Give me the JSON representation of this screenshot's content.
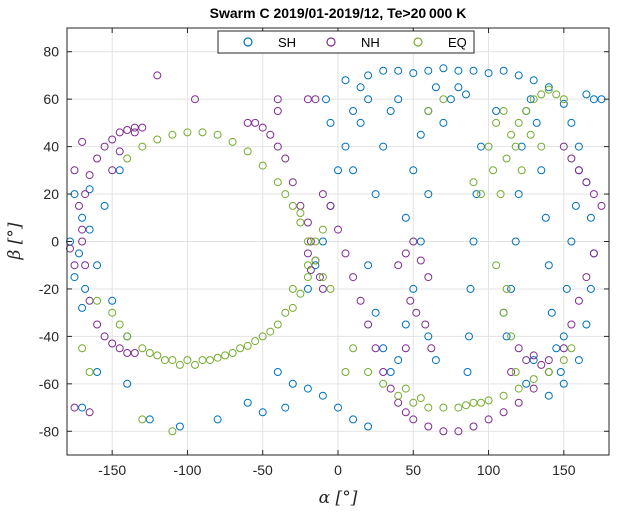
{
  "chart_data": {
    "type": "scatter",
    "title": "Swarm C 2019/01-2019/12, Te>20 000 K",
    "xlabel": "α [°]",
    "ylabel": "β [°]",
    "xlim": [
      -180,
      180
    ],
    "ylim": [
      -90,
      90
    ],
    "xticks": [
      -150,
      -100,
      -50,
      0,
      50,
      100,
      150
    ],
    "yticks": [
      -80,
      -60,
      -40,
      -20,
      0,
      20,
      40,
      60,
      80
    ],
    "xtick_labels": [
      "-150",
      "-100",
      "-50",
      "0",
      "50",
      "100",
      "150"
    ],
    "ytick_labels": [
      "-80",
      "-60",
      "-40",
      "-20",
      "0",
      "20",
      "40",
      "60",
      "80"
    ],
    "grid": true,
    "legend_position": "top",
    "marker": "open-circle",
    "series": [
      {
        "name": "SH",
        "color": "#0072BD",
        "description_shapes": {
          "left_loop_center": [
            -100,
            0
          ],
          "right_loop_center": [
            90,
            0
          ],
          "right_loop_semi_axes": [
            70,
            70
          ]
        },
        "points": [
          [
            -175,
            20
          ],
          [
            -172,
            -5
          ],
          [
            -170,
            10
          ],
          [
            -168,
            -20
          ],
          [
            -165,
            5
          ],
          [
            -160,
            -10
          ],
          [
            -155,
            15
          ],
          [
            -150,
            -25
          ],
          [
            -145,
            30
          ],
          [
            -140,
            -40
          ],
          [
            -175,
            -15
          ],
          [
            -178,
            0
          ],
          [
            -170,
            -28
          ],
          [
            -165,
            22
          ],
          [
            -20,
            -20
          ],
          [
            -15,
            -10
          ],
          [
            -10,
            0
          ],
          [
            -5,
            15
          ],
          [
            0,
            30
          ],
          [
            5,
            40
          ],
          [
            10,
            55
          ],
          [
            15,
            65
          ],
          [
            20,
            70
          ],
          [
            30,
            72
          ],
          [
            40,
            72
          ],
          [
            50,
            71
          ],
          [
            60,
            72
          ],
          [
            70,
            73
          ],
          [
            80,
            72
          ],
          [
            90,
            72
          ],
          [
            100,
            71
          ],
          [
            110,
            72
          ],
          [
            120,
            70
          ],
          [
            130,
            68
          ],
          [
            140,
            65
          ],
          [
            150,
            58
          ],
          [
            155,
            50
          ],
          [
            160,
            40
          ],
          [
            165,
            25
          ],
          [
            168,
            10
          ],
          [
            170,
            -5
          ],
          [
            168,
            -20
          ],
          [
            165,
            -35
          ],
          [
            160,
            -50
          ],
          [
            150,
            -60
          ],
          [
            140,
            -65
          ],
          [
            10,
            30
          ],
          [
            15,
            50
          ],
          [
            20,
            60
          ],
          [
            25,
            20
          ],
          [
            30,
            40
          ],
          [
            35,
            55
          ],
          [
            40,
            60
          ],
          [
            45,
            10
          ],
          [
            50,
            30
          ],
          [
            55,
            45
          ],
          [
            60,
            55
          ],
          [
            65,
            65
          ],
          [
            70,
            50
          ],
          [
            75,
            60
          ],
          [
            80,
            65
          ],
          [
            85,
            62
          ],
          [
            60,
            20
          ],
          [
            55,
            0
          ],
          [
            50,
            -20
          ],
          [
            45,
            -35
          ],
          [
            40,
            -50
          ],
          [
            35,
            -55
          ],
          [
            30,
            -45
          ],
          [
            25,
            -30
          ],
          [
            20,
            -10
          ],
          [
            60,
            -40
          ],
          [
            65,
            -50
          ],
          [
            110,
            -30
          ],
          [
            112,
            -40
          ],
          [
            115,
            -20
          ],
          [
            118,
            0
          ],
          [
            120,
            20
          ],
          [
            122,
            40
          ],
          [
            125,
            55
          ],
          [
            128,
            60
          ],
          [
            132,
            50
          ],
          [
            135,
            30
          ],
          [
            138,
            10
          ],
          [
            140,
            -10
          ],
          [
            142,
            -30
          ],
          [
            145,
            -45
          ],
          [
            148,
            -55
          ],
          [
            150,
            -40
          ],
          [
            152,
            -20
          ],
          [
            155,
            0
          ],
          [
            158,
            15
          ],
          [
            160,
            30
          ],
          [
            130,
            -50
          ],
          [
            125,
            -60
          ],
          [
            -40,
            -55
          ],
          [
            -30,
            -60
          ],
          [
            -20,
            -62
          ],
          [
            -10,
            -65
          ],
          [
            -50,
            -72
          ],
          [
            -60,
            -68
          ],
          [
            -80,
            -75
          ],
          [
            -105,
            -78
          ],
          [
            -125,
            -75
          ],
          [
            -140,
            -60
          ],
          [
            -160,
            -55
          ],
          [
            -170,
            -70
          ],
          [
            0,
            -70
          ],
          [
            10,
            -75
          ],
          [
            20,
            -78
          ],
          [
            -35,
            -70
          ],
          [
            170,
            60
          ],
          [
            175,
            60
          ],
          [
            165,
            62
          ],
          [
            -5,
            50
          ],
          [
            -8,
            60
          ],
          [
            5,
            68
          ],
          [
            105,
            55
          ],
          [
            95,
            40
          ],
          [
            92,
            20
          ],
          [
            90,
            0
          ],
          [
            88,
            -20
          ],
          [
            87,
            -40
          ],
          [
            86,
            -55
          ]
        ]
      },
      {
        "name": "NH",
        "color": "#7E2F8E",
        "points": [
          [
            -175,
            30
          ],
          [
            -172,
            15
          ],
          [
            -170,
            0
          ],
          [
            -168,
            -10
          ],
          [
            -165,
            -25
          ],
          [
            -160,
            -35
          ],
          [
            -155,
            -40
          ],
          [
            -150,
            -43
          ],
          [
            -145,
            -45
          ],
          [
            -140,
            -47
          ],
          [
            -135,
            -47
          ],
          [
            -175,
            -10
          ],
          [
            -178,
            -3
          ],
          [
            -170,
            5
          ],
          [
            -168,
            20
          ],
          [
            -165,
            28
          ],
          [
            -160,
            35
          ],
          [
            -155,
            40
          ],
          [
            -150,
            43
          ],
          [
            -145,
            46
          ],
          [
            -140,
            47
          ],
          [
            -135,
            48
          ],
          [
            -130,
            48
          ],
          [
            -40,
            40
          ],
          [
            -35,
            35
          ],
          [
            -30,
            25
          ],
          [
            -25,
            15
          ],
          [
            -20,
            8
          ],
          [
            -18,
            0
          ],
          [
            -15,
            -8
          ],
          [
            -12,
            -15
          ],
          [
            -10,
            -20
          ],
          [
            -45,
            45
          ],
          [
            -50,
            48
          ],
          [
            -55,
            50
          ],
          [
            -60,
            50
          ],
          [
            -20,
            -5
          ],
          [
            -18,
            -12
          ],
          [
            -10,
            20
          ],
          [
            -5,
            15
          ],
          [
            0,
            5
          ],
          [
            5,
            -5
          ],
          [
            10,
            -15
          ],
          [
            15,
            -25
          ],
          [
            20,
            -35
          ],
          [
            25,
            -45
          ],
          [
            30,
            -55
          ],
          [
            35,
            -62
          ],
          [
            40,
            -68
          ],
          [
            45,
            -72
          ],
          [
            50,
            -75
          ],
          [
            60,
            -78
          ],
          [
            70,
            -80
          ],
          [
            80,
            -80
          ],
          [
            90,
            -78
          ],
          [
            100,
            -75
          ],
          [
            110,
            -72
          ],
          [
            120,
            -68
          ],
          [
            130,
            -62
          ],
          [
            140,
            -55
          ],
          [
            150,
            -45
          ],
          [
            155,
            -35
          ],
          [
            160,
            -25
          ],
          [
            165,
            -15
          ],
          [
            170,
            -5
          ],
          [
            150,
            40
          ],
          [
            155,
            35
          ],
          [
            160,
            30
          ],
          [
            165,
            25
          ],
          [
            170,
            20
          ],
          [
            175,
            15
          ],
          [
            -150,
            30
          ],
          [
            -145,
            38
          ],
          [
            -135,
            46
          ],
          [
            40,
            -10
          ],
          [
            45,
            -5
          ],
          [
            50,
            0
          ],
          [
            55,
            -8
          ],
          [
            60,
            -15
          ],
          [
            48,
            -25
          ],
          [
            52,
            -30
          ],
          [
            58,
            -35
          ],
          [
            62,
            -45
          ],
          [
            45,
            -45
          ],
          [
            -175,
            -70
          ],
          [
            -165,
            -72
          ],
          [
            -170,
            42
          ],
          [
            -120,
            70
          ],
          [
            -95,
            60
          ],
          [
            -40,
            60
          ],
          [
            -40,
            55
          ],
          [
            -20,
            60
          ],
          [
            -15,
            60
          ],
          [
            125,
            -50
          ],
          [
            120,
            -45
          ],
          [
            115,
            -55
          ],
          [
            130,
            -48
          ],
          [
            135,
            -52
          ],
          [
            140,
            -50
          ]
        ]
      },
      {
        "name": "EQ",
        "color": "#77AC30",
        "points": [
          [
            -140,
            35
          ],
          [
            -130,
            40
          ],
          [
            -120,
            43
          ],
          [
            -110,
            45
          ],
          [
            -100,
            46
          ],
          [
            -90,
            46
          ],
          [
            -80,
            45
          ],
          [
            -70,
            42
          ],
          [
            -60,
            38
          ],
          [
            -50,
            32
          ],
          [
            -40,
            25
          ],
          [
            -30,
            15
          ],
          [
            -25,
            8
          ],
          [
            -20,
            0
          ],
          [
            -15,
            -8
          ],
          [
            -10,
            -15
          ],
          [
            -5,
            -20
          ],
          [
            -145,
            -35
          ],
          [
            -140,
            -40
          ],
          [
            -130,
            -45
          ],
          [
            -120,
            -48
          ],
          [
            -110,
            -50
          ],
          [
            -100,
            -50
          ],
          [
            -90,
            -50
          ],
          [
            -80,
            -49
          ],
          [
            -70,
            -47
          ],
          [
            -60,
            -44
          ],
          [
            -50,
            -40
          ],
          [
            -40,
            -35
          ],
          [
            -30,
            -28
          ],
          [
            -25,
            -22
          ],
          [
            -20,
            -15
          ],
          [
            -35,
            -30
          ],
          [
            -45,
            -38
          ],
          [
            -55,
            -42
          ],
          [
            -65,
            -45
          ],
          [
            -75,
            -48
          ],
          [
            -85,
            -50
          ],
          [
            -95,
            -52
          ],
          [
            -105,
            -52
          ],
          [
            -115,
            -50
          ],
          [
            -125,
            -47
          ],
          [
            -35,
            20
          ],
          [
            -25,
            12
          ],
          [
            -30,
            -20
          ],
          [
            -20,
            -10
          ],
          [
            -15,
            0
          ],
          [
            -10,
            5
          ],
          [
            20,
            -55
          ],
          [
            30,
            -60
          ],
          [
            40,
            -65
          ],
          [
            50,
            -68
          ],
          [
            60,
            -70
          ],
          [
            70,
            -70
          ],
          [
            80,
            -70
          ],
          [
            90,
            -68
          ],
          [
            100,
            -67
          ],
          [
            110,
            -65
          ],
          [
            120,
            -62
          ],
          [
            130,
            -58
          ],
          [
            140,
            -55
          ],
          [
            150,
            -50
          ],
          [
            155,
            -45
          ],
          [
            45,
            -62
          ],
          [
            55,
            -66
          ],
          [
            85,
            -69
          ],
          [
            95,
            -68
          ],
          [
            100,
            40
          ],
          [
            105,
            50
          ],
          [
            110,
            55
          ],
          [
            115,
            45
          ],
          [
            120,
            50
          ],
          [
            125,
            55
          ],
          [
            130,
            60
          ],
          [
            135,
            62
          ],
          [
            140,
            64
          ],
          [
            145,
            62
          ],
          [
            150,
            60
          ],
          [
            103,
            30
          ],
          [
            108,
            20
          ],
          [
            95,
            20
          ],
          [
            90,
            25
          ],
          [
            112,
            35
          ],
          [
            118,
            40
          ],
          [
            122,
            30
          ],
          [
            128,
            45
          ],
          [
            135,
            40
          ],
          [
            -160,
            -25
          ],
          [
            -150,
            -30
          ],
          [
            -170,
            -45
          ],
          [
            -165,
            -55
          ],
          [
            -130,
            -75
          ],
          [
            -110,
            -80
          ],
          [
            5,
            -55
          ],
          [
            10,
            -45
          ],
          [
            60,
            55
          ],
          [
            70,
            60
          ],
          [
            110,
            -30
          ],
          [
            112,
            -20
          ],
          [
            105,
            -10
          ],
          [
            115,
            -40
          ],
          [
            118,
            -55
          ]
        ]
      }
    ]
  }
}
